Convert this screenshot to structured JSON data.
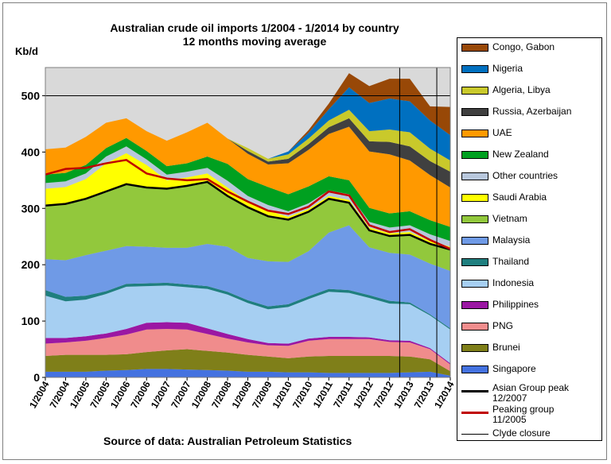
{
  "title_line1": "Australian crude oil imports 1/2004 - 1/2014 by country",
  "title_line2": "12 months moving average",
  "ylabel": "Kb/d",
  "source": "Source of data: Australian Petroleum Statistics",
  "colors": {
    "plot_background": "#d9d9d9",
    "outer_background": "#ffffff"
  },
  "legend_items": [
    {
      "label": "Congo, Gabon",
      "color": "#984807",
      "kind": "area"
    },
    {
      "label": "Nigeria",
      "color": "#0070c0",
      "kind": "area"
    },
    {
      "label": "Algeria, Libya",
      "color": "#c9c92b",
      "kind": "area"
    },
    {
      "label": "Russia, Azerbaijan",
      "color": "#404040",
      "kind": "area"
    },
    {
      "label": "UAE",
      "color": "#ff9900",
      "kind": "area"
    },
    {
      "label": "New Zealand",
      "color": "#00a020",
      "kind": "area"
    },
    {
      "label": "Other countries",
      "color": "#b8c7dc",
      "kind": "area"
    },
    {
      "label": "Saudi Arabia",
      "color": "#ffff00",
      "kind": "area"
    },
    {
      "label": "Vietnam",
      "color": "#92c83c",
      "kind": "area"
    },
    {
      "label": "Malaysia",
      "color": "#6f9ae6",
      "kind": "area"
    },
    {
      "label": "Thailand",
      "color": "#1f7f7f",
      "kind": "area"
    },
    {
      "label": "Indonesia",
      "color": "#a6cff2",
      "kind": "area"
    },
    {
      "label": "Philippines",
      "color": "#9b17a3",
      "kind": "area"
    },
    {
      "label": "PNG",
      "color": "#f08c8c",
      "kind": "area"
    },
    {
      "label": "Brunei",
      "color": "#7f7f19",
      "kind": "area"
    },
    {
      "label": "Singapore",
      "color": "#4472e0",
      "kind": "area"
    },
    {
      "label": "Asian Group peak 12/2007",
      "color": "#000000",
      "kind": "line"
    },
    {
      "label": "Peaking group 11/2005",
      "color": "#c00000",
      "kind": "line"
    },
    {
      "label": "Clyde closure",
      "color": "#000000",
      "kind": "thinline"
    }
  ],
  "chart_data": {
    "type": "area",
    "title": "Australian crude oil imports 1/2004 - 1/2014 by country\n12 months moving average",
    "ylabel": "Kb/d",
    "ylim": [
      0,
      550
    ],
    "yticks": [
      0,
      100,
      200,
      300,
      400,
      500
    ],
    "x_tick_labels": [
      "1/2004",
      "7/2004",
      "1/2005",
      "7/2005",
      "1/2006",
      "7/2006",
      "1/2007",
      "7/2007",
      "1/2008",
      "7/2008",
      "1/2009",
      "7/2009",
      "1/2010",
      "7/2010",
      "1/2011",
      "7/2011",
      "1/2012",
      "7/2012",
      "1/2013",
      "7/2013",
      "1/2014"
    ],
    "stacked": true,
    "series": [
      {
        "name": "Singapore",
        "color": "#4472e0",
        "values": [
          10,
          10,
          10,
          12,
          13,
          15,
          15,
          14,
          13,
          12,
          10,
          10,
          9,
          9,
          8,
          8,
          8,
          8,
          9,
          10,
          3
        ]
      },
      {
        "name": "Brunei",
        "color": "#7f7f19",
        "values": [
          28,
          30,
          30,
          28,
          28,
          30,
          33,
          36,
          34,
          32,
          30,
          27,
          25,
          28,
          30,
          30,
          30,
          30,
          28,
          22,
          8
        ]
      },
      {
        "name": "PNG",
        "color": "#f08c8c",
        "values": [
          22,
          22,
          25,
          30,
          35,
          40,
          38,
          35,
          30,
          25,
          22,
          20,
          22,
          28,
          30,
          30,
          30,
          25,
          25,
          18,
          12
        ]
      },
      {
        "name": "Philippines",
        "color": "#9b17a3",
        "values": [
          10,
          8,
          8,
          8,
          10,
          12,
          12,
          12,
          10,
          8,
          6,
          4,
          4,
          4,
          4,
          4,
          3,
          3,
          3,
          2,
          2
        ]
      },
      {
        "name": "Indonesia",
        "color": "#a6cff2",
        "values": [
          75,
          65,
          65,
          70,
          75,
          65,
          65,
          63,
          70,
          70,
          64,
          60,
          65,
          70,
          80,
          78,
          70,
          65,
          65,
          58,
          60
        ]
      },
      {
        "name": "Thailand",
        "color": "#1f7f7f",
        "values": [
          10,
          8,
          7,
          5,
          5,
          5,
          5,
          5,
          5,
          5,
          5,
          5,
          5,
          5,
          5,
          5,
          5,
          5,
          3,
          2,
          2
        ]
      },
      {
        "name": "Malaysia",
        "color": "#6f9ae6",
        "values": [
          55,
          65,
          72,
          72,
          67,
          65,
          62,
          65,
          75,
          80,
          75,
          80,
          75,
          80,
          100,
          115,
          85,
          85,
          85,
          90,
          102
        ]
      },
      {
        "name": "Vietnam",
        "color": "#92c83c",
        "values": [
          95,
          100,
          100,
          105,
          110,
          105,
          105,
          110,
          110,
          90,
          90,
          80,
          75,
          70,
          60,
          40,
          30,
          30,
          35,
          35,
          38
        ]
      },
      {
        "name": "Saudi Arabia",
        "color": "#ffff00",
        "values": [
          30,
          30,
          35,
          50,
          55,
          40,
          15,
          15,
          15,
          15,
          10,
          10,
          5,
          5,
          5,
          5,
          5,
          5,
          5,
          5,
          5
        ]
      },
      {
        "name": "Other countries",
        "color": "#b8c7dc",
        "values": [
          10,
          10,
          10,
          12,
          12,
          10,
          10,
          10,
          10,
          12,
          10,
          10,
          10,
          10,
          10,
          10,
          10,
          10,
          12,
          12,
          10
        ]
      },
      {
        "name": "New Zealand",
        "color": "#00a020",
        "values": [
          15,
          15,
          15,
          15,
          15,
          15,
          15,
          15,
          20,
          30,
          30,
          32,
          30,
          30,
          25,
          25,
          25,
          25,
          25,
          25,
          25
        ]
      },
      {
        "name": "UAE",
        "color": "#ff9900",
        "values": [
          45,
          45,
          50,
          45,
          35,
          35,
          45,
          55,
          60,
          45,
          45,
          40,
          55,
          65,
          75,
          95,
          100,
          105,
          90,
          80,
          70
        ]
      },
      {
        "name": "Russia, Azerbaijan",
        "color": "#404040",
        "values": [
          0,
          0,
          0,
          0,
          0,
          0,
          0,
          0,
          0,
          0,
          5,
          5,
          8,
          10,
          12,
          15,
          18,
          22,
          25,
          25,
          28
        ]
      },
      {
        "name": "Algeria, Libya",
        "color": "#c9c92b",
        "values": [
          0,
          0,
          0,
          0,
          0,
          0,
          0,
          0,
          0,
          0,
          5,
          5,
          8,
          10,
          12,
          15,
          18,
          22,
          25,
          22,
          20
        ]
      },
      {
        "name": "Nigeria",
        "color": "#0070c0",
        "values": [
          0,
          0,
          0,
          0,
          0,
          0,
          0,
          0,
          0,
          0,
          0,
          0,
          5,
          10,
          20,
          40,
          50,
          55,
          55,
          50,
          45
        ]
      },
      {
        "name": "Congo, Gabon",
        "color": "#984807",
        "values": [
          0,
          0,
          0,
          0,
          0,
          0,
          0,
          0,
          0,
          0,
          0,
          0,
          0,
          5,
          10,
          25,
          30,
          35,
          40,
          25,
          50
        ]
      }
    ],
    "lines": [
      {
        "name": "Asian Group peak 12/2007",
        "color": "#000000",
        "values": [
          305,
          308,
          317,
          330,
          343,
          337,
          335,
          340,
          347,
          322,
          302,
          286,
          280,
          294,
          317,
          310,
          261,
          251,
          253,
          237,
          227
        ]
      },
      {
        "name": "Peaking group 11/2005",
        "color": "#c00000",
        "values": [
          360,
          370,
          372,
          380,
          386,
          362,
          353,
          350,
          352,
          330,
          312,
          296,
          290,
          303,
          330,
          323,
          270,
          258,
          263,
          244,
          228
        ]
      }
    ],
    "vlines": [
      {
        "name": "Clyde closure",
        "x_label": "10/2012"
      },
      {
        "name": "Clyde closure",
        "x_label": "9/2013"
      }
    ]
  }
}
